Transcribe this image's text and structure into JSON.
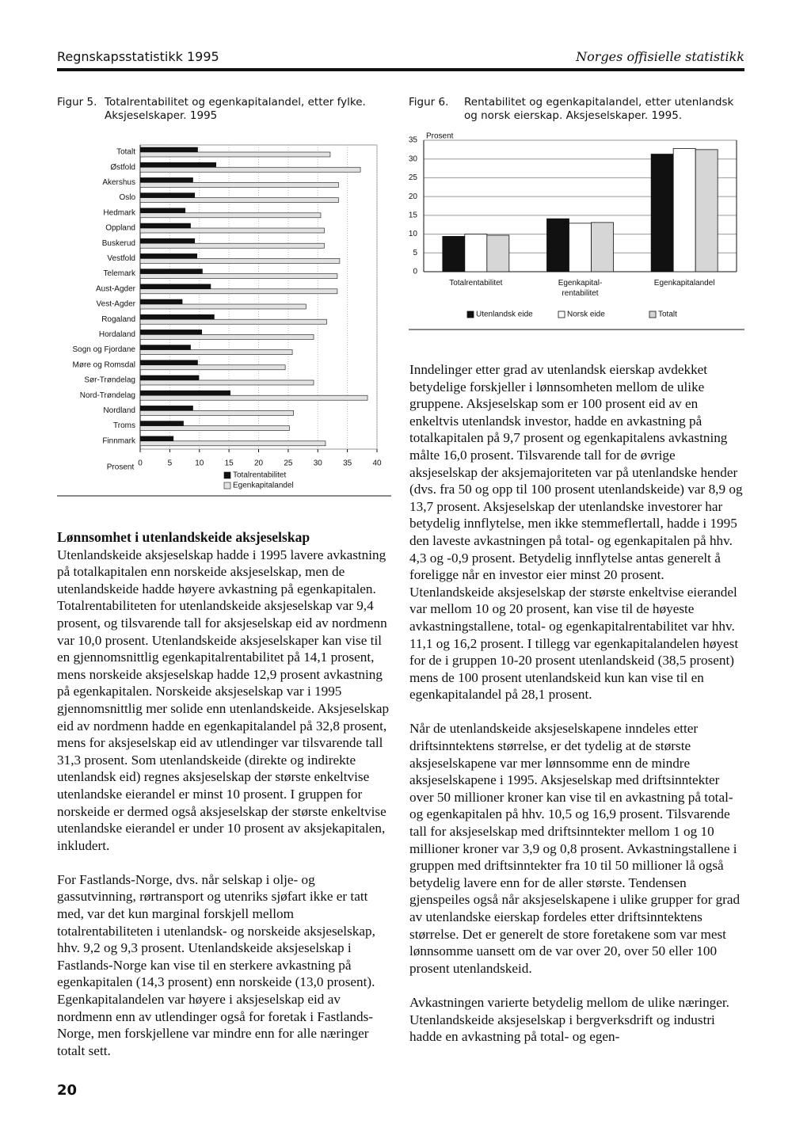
{
  "header": {
    "left": "Regnskapsstatistikk 1995",
    "right": "Norges offisielle statistikk"
  },
  "chart_data": [
    {
      "type": "hbar",
      "label": "Figur 5.",
      "title": "Totalrentabilitet og egenkapitalandel, etter fylke. Aksjeselskaper. 1995",
      "categories": [
        "Totalt",
        "Østfold",
        "Akershus",
        "Oslo",
        "Hedmark",
        "Oppland",
        "Buskerud",
        "Vestfold",
        "Telemark",
        "Aust-Agder",
        "Vest-Agder",
        "Rogaland",
        "Hordaland",
        "Sogn og Fjordane",
        "Møre og Romsdal",
        "Sør-Trøndelag",
        "Nord-Trøndelag",
        "Nordland",
        "Troms",
        "Finnmark"
      ],
      "series": [
        {
          "name": "Totalrentabilitet",
          "color": "#111111",
          "values": [
            9.7,
            12.8,
            8.9,
            9.2,
            7.6,
            8.5,
            9.2,
            9.6,
            10.5,
            11.9,
            7.1,
            12.5,
            10.4,
            8.5,
            9.7,
            9.9,
            15.2,
            8.9,
            7.3,
            5.6
          ]
        },
        {
          "name": "Egenkapitalandel",
          "color": "#e2e2e2",
          "values": [
            32.1,
            37.2,
            33.5,
            33.5,
            30.5,
            31.1,
            31.1,
            33.7,
            33.3,
            33.3,
            28.0,
            31.5,
            29.3,
            25.7,
            24.5,
            29.3,
            38.4,
            25.9,
            25.2,
            31.3
          ]
        }
      ],
      "xlabel": "Prosent",
      "xlim": [
        0,
        40
      ],
      "xticks": [
        0,
        5,
        10,
        15,
        20,
        25,
        30,
        35,
        40
      ],
      "grid": true
    },
    {
      "type": "bar",
      "label": "Figur 6.",
      "title": "Rentabilitet og egenkapitalandel, etter utenlandsk og norsk eierskap. Aksjeselskaper. 1995.",
      "ylabel": "Prosent",
      "categories": [
        "Totalrentabilitet",
        "Egenkapital-\nrentabilitet",
        "Egenkapitalandel"
      ],
      "series": [
        {
          "name": "Utenlandsk eide",
          "color": "#111111",
          "values": [
            9.4,
            14.1,
            31.3
          ]
        },
        {
          "name": "Norsk eide",
          "color": "#ffffff",
          "values": [
            10.0,
            12.9,
            32.8
          ]
        },
        {
          "name": "Totalt",
          "color": "#d6d6d6",
          "values": [
            9.7,
            13.1,
            32.5
          ]
        }
      ],
      "ylim": [
        0,
        35
      ],
      "yticks": [
        0,
        5,
        10,
        15,
        20,
        25,
        30,
        35
      ],
      "grid": true
    }
  ],
  "text": {
    "left": {
      "heading": "Lønnsomhet i utenlandskeide aksjeselskap",
      "paragraphs": [
        "Utenlandskeide aksjeselskap hadde i 1995 lavere avkastning på totalkapitalen enn norskeide aksjeselskap, men de utenlandskeide hadde høyere avkastning på egenkapitalen. Totalrentabiliteten for utenlandskeide aksjeselskap var 9,4 prosent, og tilsvarende tall for aksjeselskap eid av nordmenn var 10,0 prosent. Utenlandskeide aksjeselskaper kan vise til en gjennomsnittlig egenkapitalrentabilitet på 14,1 prosent, mens norskeide aksjeselskap hadde 12,9 prosent avkastning på egenkapitalen. Norskeide aksjeselskap var i 1995 gjennomsnittlig mer solide enn utenlandskeide. Aksjeselskap eid av nordmenn hadde en egenkapitalandel på 32,8 prosent, mens for aksjeselskap eid av utlendinger var tilsvarende tall 31,3 prosent. Som utenlandskeide (direkte og indirekte utenlandsk eid) regnes aksjeselskap der største enkeltvise utenlandske eierandel er minst 10 prosent. I gruppen for norskeide er dermed også aksjeselskap der største enkeltvise utenlandske eierandel er under 10 prosent av aksjekapitalen, inkludert.",
        "For Fastlands-Norge, dvs. når selskap i olje- og gassutvinning, rørtransport og utenriks sjøfart ikke er tatt med, var det kun marginal forskjell mellom totalrentabiliteten i utenlandsk- og norskeide aksjeselskap, hhv. 9,2 og 9,3 prosent. Utenlandskeide aksjeselskap i Fastlands-Norge kan vise til en sterkere avkastning på egenkapitalen (14,3 prosent) enn norskeide (13,0 prosent). Egenkapitalandelen var høyere i aksjeselskap eid av nordmenn enn av utlendinger også for foretak i Fastlands-Norge, men forskjellene var mindre enn for alle næringer totalt sett."
      ]
    },
    "right": {
      "paragraphs": [
        "Inndelinger etter grad av utenlandsk eierskap avdekket betydelige forskjeller i lønnsomheten mellom de ulike gruppene. Aksjeselskap som er 100 prosent eid av en enkeltvis utenlandsk investor, hadde en avkastning på totalkapitalen på 9,7 prosent og egenkapitalens avkastning målte 16,0 prosent. Tilsvarende tall for de øvrige aksjeselskap der aksjemajoriteten var på utenlandske hender (dvs. fra 50 og opp til 100 prosent utenlandskeide) var 8,9 og 13,7 prosent. Aksjeselskap der utenlandske investorer har betydelig innflytelse, men ikke stemmeflertall, hadde i 1995 den laveste avkastningen på total- og egenkapitalen på hhv. 4,3 og -0,9 prosent. Betydelig innflytelse antas generelt å foreligge når en investor eier minst 20 prosent. Utenlandskeide aksjeselskap der største enkeltvise eierandel var mellom 10 og 20 prosent, kan vise til de høyeste avkastningstallene, total- og egenkapitalrentabilitet var hhv. 11,1 og 16,2 prosent. I tillegg var egenkapitalandelen høyest for de i gruppen 10-20 prosent utenlandskeid (38,5 prosent) mens de 100 prosent utenlandskeid kun kan vise til en egenkapitalandel på 28,1 prosent.",
        "Når de utenlandskeide aksjeselskapene inndeles etter driftsinntektens størrelse, er det tydelig at de største aksjeselskapene var mer lønnsomme enn de mindre aksjeselskapene i 1995. Aksjeselskap med driftsinntekter over 50 millioner kroner kan vise til en avkastning på total- og egenkapitalen på hhv. 10,5 og 16,9 prosent. Tilsvarende tall for aksjeselskap med driftsinntekter mellom 1 og 10 millioner kroner var 3,9 og 0,8 prosent. Avkastningstallene i gruppen med driftsinntekter fra 10 til 50 millioner lå også betydelig lavere enn for de aller største. Tendensen gjenspeiles også når aksjeselskapene i ulike grupper for grad av utenlandske eierskap fordeles etter driftsinntektens størrelse. Det er generelt de store foretakene som var mest lønnsomme uansett om de var over 20, over 50 eller 100 prosent utenlandskeid.",
        "Avkastningen varierte betydelig mellom de ulike næringer. Utenlandskeide aksjeselskap i bergverksdrift og industri hadde en avkastning på total- og egen-"
      ]
    }
  },
  "page_number": "20"
}
